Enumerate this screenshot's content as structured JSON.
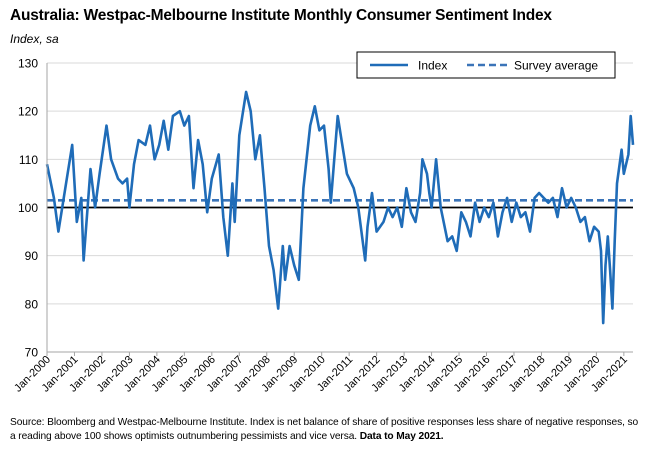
{
  "header": {
    "title": "Australia: Westpac-Melbourne Institute Monthly Consumer Sentiment Index",
    "subtitle": "Index, sa"
  },
  "footer": {
    "source": "Source: Bloomberg and Westpac-Melbourne Institute.  Index is net balance of share of positive responses less share of negative responses, so a reading above 100 shows optimists outnumbering pessimists and vice versa.",
    "data_note": "Data to May 2021."
  },
  "chart_data": {
    "type": "line",
    "title": "Australia: Westpac-Melbourne Institute Monthly Consumer Sentiment Index",
    "subtitle": "Index, sa",
    "ylim": [
      70,
      130
    ],
    "yticks": [
      70,
      80,
      90,
      100,
      110,
      120,
      130
    ],
    "xlabels": [
      "Jan-2000",
      "Jan-2001",
      "Jan-2002",
      "Jan-2003",
      "Jan-2004",
      "Jan-2005",
      "Jan-2006",
      "Jan-2007",
      "Jan-2008",
      "Jan-2009",
      "Jan-2010",
      "Jan-2011",
      "Jan-2012",
      "Jan-2013",
      "Jan-2014",
      "Jan-2015",
      "Jan-2016",
      "Jan-2017",
      "Jan-2018",
      "Jan-2019",
      "Jan-2020",
      "Jan-2021"
    ],
    "x_start": "Jan-2000",
    "x_end": "May-2021",
    "reference_line": 100,
    "grid": "horizontal",
    "legend_position": "top-right",
    "colors": {
      "index": "#1f6cb8",
      "average": "#3b74b8",
      "reference": "#000000",
      "grid": "#d9d9d9"
    },
    "series": [
      {
        "name": "Index",
        "style": "solid",
        "points": [
          [
            "Jan-2000",
            109
          ],
          [
            "Apr-2000",
            102
          ],
          [
            "Jun-2000",
            95
          ],
          [
            "Sep-2000",
            104
          ],
          [
            "Dec-2000",
            113
          ],
          [
            "Feb-2001",
            97
          ],
          [
            "Apr-2001",
            102
          ],
          [
            "May-2001",
            89
          ],
          [
            "Aug-2001",
            108
          ],
          [
            "Oct-2001",
            100
          ],
          [
            "Dec-2001",
            107
          ],
          [
            "Mar-2002",
            117
          ],
          [
            "May-2002",
            110
          ],
          [
            "Aug-2002",
            106
          ],
          [
            "Oct-2002",
            105
          ],
          [
            "Dec-2002",
            106
          ],
          [
            "Jan-2003",
            100
          ],
          [
            "Mar-2003",
            109
          ],
          [
            "May-2003",
            114
          ],
          [
            "Aug-2003",
            113
          ],
          [
            "Oct-2003",
            117
          ],
          [
            "Dec-2003",
            110
          ],
          [
            "Feb-2004",
            113
          ],
          [
            "Apr-2004",
            118
          ],
          [
            "Jun-2004",
            112
          ],
          [
            "Aug-2004",
            119
          ],
          [
            "Nov-2004",
            120
          ],
          [
            "Jan-2005",
            117
          ],
          [
            "Mar-2005",
            119
          ],
          [
            "May-2005",
            104
          ],
          [
            "Jul-2005",
            114
          ],
          [
            "Sep-2005",
            109
          ],
          [
            "Nov-2005",
            99
          ],
          [
            "Jan-2006",
            106
          ],
          [
            "Apr-2006",
            111
          ],
          [
            "Jun-2006",
            98
          ],
          [
            "Aug-2006",
            90
          ],
          [
            "Oct-2006",
            105
          ],
          [
            "Nov-2006",
            97
          ],
          [
            "Jan-2007",
            115
          ],
          [
            "Apr-2007",
            124
          ],
          [
            "Jun-2007",
            120
          ],
          [
            "Aug-2007",
            110
          ],
          [
            "Oct-2007",
            115
          ],
          [
            "Dec-2007",
            104
          ],
          [
            "Feb-2008",
            92
          ],
          [
            "Apr-2008",
            87
          ],
          [
            "Jun-2008",
            79
          ],
          [
            "Aug-2008",
            92
          ],
          [
            "Sep-2008",
            85
          ],
          [
            "Nov-2008",
            92
          ],
          [
            "Jan-2009",
            88
          ],
          [
            "Mar-2009",
            85
          ],
          [
            "May-2009",
            104
          ],
          [
            "Aug-2009",
            117
          ],
          [
            "Oct-2009",
            121
          ],
          [
            "Dec-2009",
            116
          ],
          [
            "Feb-2010",
            117
          ],
          [
            "Apr-2010",
            108
          ],
          [
            "May-2010",
            101
          ],
          [
            "Aug-2010",
            119
          ],
          [
            "Oct-2010",
            113
          ],
          [
            "Dec-2010",
            107
          ],
          [
            "Mar-2011",
            104
          ],
          [
            "May-2011",
            100
          ],
          [
            "Aug-2011",
            89
          ],
          [
            "Sep-2011",
            96
          ],
          [
            "Nov-2011",
            103
          ],
          [
            "Jan-2012",
            95
          ],
          [
            "Apr-2012",
            97
          ],
          [
            "Jun-2012",
            100
          ],
          [
            "Aug-2012",
            98
          ],
          [
            "Oct-2012",
            100
          ],
          [
            "Dec-2012",
            96
          ],
          [
            "Feb-2013",
            104
          ],
          [
            "Apr-2013",
            99
          ],
          [
            "Jun-2013",
            97
          ],
          [
            "Aug-2013",
            103
          ],
          [
            "Sep-2013",
            110
          ],
          [
            "Nov-2013",
            107
          ],
          [
            "Dec-2013",
            103
          ],
          [
            "Jan-2014",
            100
          ],
          [
            "Mar-2014",
            110
          ],
          [
            "May-2014",
            100
          ],
          [
            "Aug-2014",
            93
          ],
          [
            "Oct-2014",
            94
          ],
          [
            "Dec-2014",
            91
          ],
          [
            "Feb-2015",
            99
          ],
          [
            "Apr-2015",
            97
          ],
          [
            "Jun-2015",
            94
          ],
          [
            "Aug-2015",
            101
          ],
          [
            "Oct-2015",
            97
          ],
          [
            "Dec-2015",
            100
          ],
          [
            "Feb-2016",
            98
          ],
          [
            "Apr-2016",
            101
          ],
          [
            "Jun-2016",
            94
          ],
          [
            "Aug-2016",
            99
          ],
          [
            "Oct-2016",
            102
          ],
          [
            "Dec-2016",
            97
          ],
          [
            "Feb-2017",
            101
          ],
          [
            "Apr-2017",
            98
          ],
          [
            "Jun-2017",
            99
          ],
          [
            "Aug-2017",
            95
          ],
          [
            "Oct-2017",
            102
          ],
          [
            "Dec-2017",
            103
          ],
          [
            "Feb-2018",
            102
          ],
          [
            "Apr-2018",
            101
          ],
          [
            "Jun-2018",
            102
          ],
          [
            "Aug-2018",
            98
          ],
          [
            "Oct-2018",
            104
          ],
          [
            "Dec-2018",
            100
          ],
          [
            "Feb-2019",
            102
          ],
          [
            "Apr-2019",
            100
          ],
          [
            "Jun-2019",
            97
          ],
          [
            "Aug-2019",
            98
          ],
          [
            "Oct-2019",
            93
          ],
          [
            "Dec-2019",
            96
          ],
          [
            "Feb-2020",
            95
          ],
          [
            "Mar-2020",
            91
          ],
          [
            "Apr-2020",
            76
          ],
          [
            "May-2020",
            88
          ],
          [
            "Jun-2020",
            94
          ],
          [
            "Jul-2020",
            87
          ],
          [
            "Aug-2020",
            79
          ],
          [
            "Sep-2020",
            93
          ],
          [
            "Oct-2020",
            105
          ],
          [
            "Dec-2020",
            112
          ],
          [
            "Jan-2021",
            107
          ],
          [
            "Mar-2021",
            111
          ],
          [
            "Apr-2021",
            119
          ],
          [
            "May-2021",
            113
          ]
        ]
      },
      {
        "name": "Survey average",
        "style": "dashed",
        "value": 101.5
      }
    ]
  }
}
